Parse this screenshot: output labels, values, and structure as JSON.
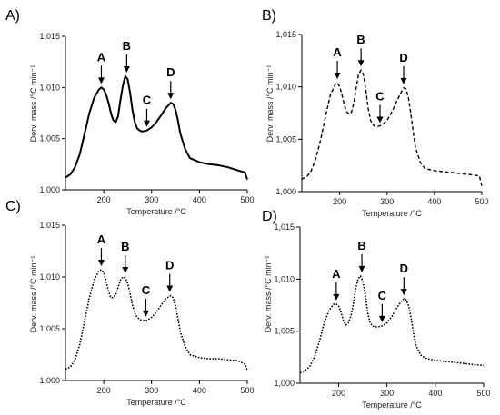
{
  "chart_data": [
    {
      "panel_label": "A)",
      "type": "line",
      "xlabel": "Temperature /°C",
      "ylabel": "Derv. mass /°C min⁻¹",
      "xlim": [
        120,
        500
      ],
      "ylim": [
        1.0,
        1.015
      ],
      "xticks": [
        "200",
        "300",
        "400",
        "500"
      ],
      "yticks": [
        "1,000",
        "1,005",
        "1,010",
        "1,015"
      ],
      "line_style": "solid",
      "series": [
        {
          "x": [
            120,
            130,
            140,
            150,
            160,
            170,
            180,
            190,
            195,
            200,
            205,
            210,
            215,
            220,
            225,
            230,
            235,
            240,
            245,
            250,
            255,
            260,
            265,
            270,
            275,
            280,
            290,
            300,
            310,
            320,
            330,
            340,
            345,
            350,
            355,
            360,
            370,
            380,
            400,
            420,
            440,
            460,
            480,
            495,
            500
          ],
          "y": [
            1.0012,
            1.0015,
            1.0022,
            1.0035,
            1.0055,
            1.0075,
            1.009,
            1.0098,
            1.01,
            1.0098,
            1.0093,
            1.0085,
            1.0075,
            1.0068,
            1.0066,
            1.0072,
            1.0088,
            1.0102,
            1.0111,
            1.0108,
            1.0095,
            1.0078,
            1.0066,
            1.006,
            1.0058,
            1.0057,
            1.0058,
            1.0061,
            1.0066,
            1.0073,
            1.008,
            1.0085,
            1.0084,
            1.0078,
            1.0068,
            1.0055,
            1.004,
            1.0031,
            1.0027,
            1.0025,
            1.0024,
            1.0022,
            1.0019,
            1.0017,
            1.001
          ]
        }
      ],
      "annotations": [
        {
          "text": "A",
          "x": 195,
          "y": 1.01
        },
        {
          "text": "B",
          "x": 248,
          "y": 1.0111
        },
        {
          "text": "C",
          "x": 290,
          "y": 1.0058
        },
        {
          "text": "D",
          "x": 340,
          "y": 1.0085
        }
      ]
    },
    {
      "panel_label": "B)",
      "type": "line",
      "xlabel": "Temperature /°C",
      "ylabel": "Derv. mass /°C min⁻¹",
      "xlim": [
        120,
        500
      ],
      "ylim": [
        1.0,
        1.015
      ],
      "xticks": [
        "200",
        "300",
        "400",
        "500"
      ],
      "yticks": [
        "1,000",
        "1,005",
        "1,010",
        "1,015"
      ],
      "line_style": "dashed",
      "series": [
        {
          "x": [
            120,
            130,
            140,
            150,
            160,
            170,
            180,
            190,
            195,
            200,
            205,
            210,
            215,
            220,
            225,
            230,
            235,
            240,
            245,
            250,
            255,
            260,
            265,
            270,
            275,
            280,
            290,
            300,
            310,
            320,
            330,
            335,
            340,
            345,
            350,
            355,
            360,
            370,
            380,
            400,
            420,
            440,
            460,
            480,
            495,
            500
          ],
          "y": [
            1.0012,
            1.0014,
            1.002,
            1.0032,
            1.005,
            1.0072,
            1.0092,
            1.0102,
            1.0104,
            1.01,
            1.0092,
            1.0082,
            1.0076,
            1.0074,
            1.0076,
            1.0085,
            1.01,
            1.0112,
            1.0116,
            1.0112,
            1.0098,
            1.008,
            1.0068,
            1.0064,
            1.0062,
            1.0062,
            1.0064,
            1.0068,
            1.0076,
            1.0086,
            1.0095,
            1.0099,
            1.0098,
            1.009,
            1.0075,
            1.0058,
            1.0042,
            1.0028,
            1.0022,
            1.002,
            1.0019,
            1.0018,
            1.0017,
            1.0016,
            1.0015,
            1.0005
          ]
        }
      ],
      "annotations": [
        {
          "text": "A",
          "x": 195,
          "y": 1.0104
        },
        {
          "text": "B",
          "x": 245,
          "y": 1.0116
        },
        {
          "text": "C",
          "x": 285,
          "y": 1.0062
        },
        {
          "text": "D",
          "x": 335,
          "y": 1.0099
        }
      ]
    },
    {
      "panel_label": "C)",
      "type": "line",
      "xlabel": "Temperature /°C",
      "ylabel": "Derv. mass /°C min⁻¹",
      "xlim": [
        120,
        500
      ],
      "ylim": [
        1.0,
        1.015
      ],
      "xticks": [
        "200",
        "300",
        "400",
        "500"
      ],
      "yticks": [
        "1,000",
        "1,005",
        "1,010",
        "1,015"
      ],
      "line_style": "dotted",
      "series": [
        {
          "x": [
            120,
            130,
            140,
            150,
            160,
            170,
            180,
            190,
            195,
            200,
            205,
            210,
            215,
            220,
            225,
            230,
            235,
            240,
            245,
            250,
            255,
            260,
            265,
            270,
            275,
            280,
            290,
            300,
            310,
            320,
            330,
            340,
            345,
            350,
            355,
            360,
            370,
            380,
            400,
            420,
            440,
            460,
            480,
            495,
            500
          ],
          "y": [
            1.0011,
            1.0013,
            1.002,
            1.0035,
            1.0058,
            1.008,
            1.0097,
            1.0106,
            1.0107,
            1.0104,
            1.0096,
            1.0086,
            1.008,
            1.008,
            1.0083,
            1.009,
            1.0097,
            1.01,
            1.0099,
            1.0094,
            1.0084,
            1.0073,
            1.0065,
            1.0061,
            1.0059,
            1.0058,
            1.0058,
            1.0061,
            1.0066,
            1.0073,
            1.0079,
            1.0082,
            1.008,
            1.0072,
            1.006,
            1.0047,
            1.0033,
            1.0025,
            1.0022,
            1.0021,
            1.0021,
            1.002,
            1.0019,
            1.0016,
            1.001
          ]
        }
      ],
      "annotations": [
        {
          "text": "A",
          "x": 195,
          "y": 1.0107
        },
        {
          "text": "B",
          "x": 245,
          "y": 1.01
        },
        {
          "text": "C",
          "x": 288,
          "y": 1.0058
        },
        {
          "text": "D",
          "x": 338,
          "y": 1.0082
        }
      ]
    },
    {
      "panel_label": "D)",
      "type": "line",
      "xlabel": "Temperature /°C",
      "ylabel": "Derv. mass /°C min⁻¹",
      "xlim": [
        120,
        500
      ],
      "ylim": [
        1.0,
        1.015
      ],
      "xticks": [
        "200",
        "300",
        "400",
        "500"
      ],
      "yticks": [
        "1,000",
        "1,005",
        "1,010",
        "1,015"
      ],
      "line_style": "dotted",
      "series": [
        {
          "x": [
            120,
            130,
            140,
            150,
            160,
            170,
            180,
            190,
            195,
            200,
            205,
            210,
            215,
            220,
            225,
            230,
            235,
            240,
            245,
            250,
            255,
            260,
            265,
            270,
            275,
            280,
            290,
            300,
            310,
            320,
            330,
            335,
            340,
            345,
            350,
            355,
            360,
            370,
            380,
            400,
            420,
            440,
            460,
            480,
            500
          ],
          "y": [
            1.001,
            1.0012,
            1.0016,
            1.0025,
            1.004,
            1.0058,
            1.007,
            1.0076,
            1.0076,
            1.0074,
            1.0068,
            1.006,
            1.0056,
            1.0058,
            1.0064,
            1.0075,
            1.009,
            1.01,
            1.0103,
            1.0098,
            1.0085,
            1.0068,
            1.0058,
            1.0055,
            1.0054,
            1.0054,
            1.0055,
            1.0058,
            1.0064,
            1.0072,
            1.0079,
            1.0081,
            1.008,
            1.0074,
            1.0062,
            1.0048,
            1.0036,
            1.0027,
            1.0024,
            1.0022,
            1.0021,
            1.002,
            1.0019,
            1.0018,
            1.0017
          ]
        }
      ],
      "annotations": [
        {
          "text": "A",
          "x": 195,
          "y": 1.0076
        },
        {
          "text": "B",
          "x": 248,
          "y": 1.0103
        },
        {
          "text": "C",
          "x": 290,
          "y": 1.0055
        },
        {
          "text": "D",
          "x": 335,
          "y": 1.0081
        }
      ]
    }
  ]
}
